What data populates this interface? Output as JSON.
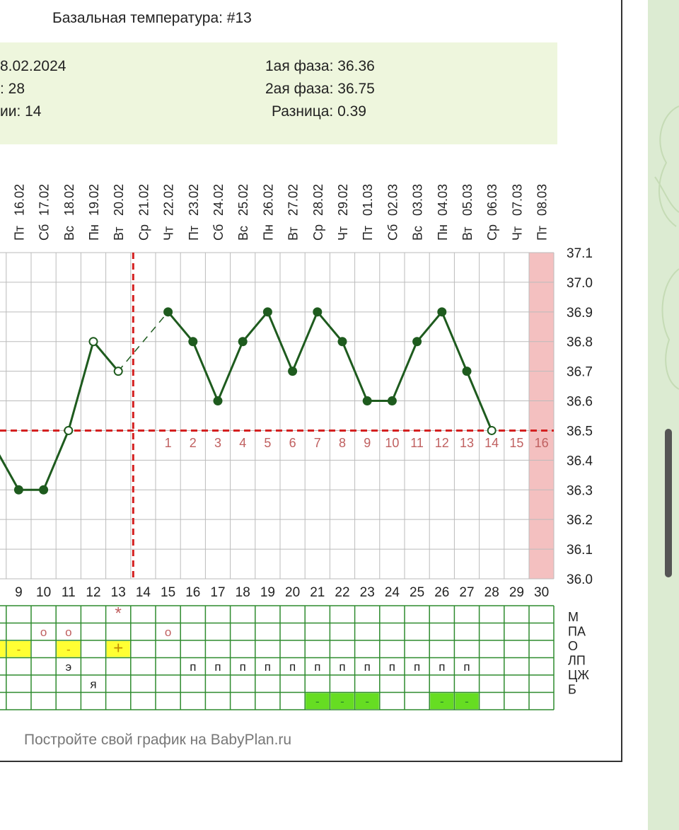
{
  "chart_title": "Базальная температура: #13",
  "summary": {
    "left": [
      "8.02.2024",
      ": 28",
      "ии: 14"
    ],
    "right": [
      "1ая фаза: 36.36",
      "2ая фаза: 36.75",
      "Разница: 0.39"
    ]
  },
  "footer": "Постройте свой график на BabyPlan.ru",
  "chart_data": {
    "type": "line",
    "title": "Базальная температура: #13",
    "days": [
      9,
      10,
      11,
      12,
      13,
      14,
      15,
      16,
      17,
      18,
      19,
      20,
      21,
      22,
      23,
      24,
      25,
      26,
      27,
      28,
      29,
      30
    ],
    "dates": [
      "16.02",
      "17.02",
      "18.02",
      "19.02",
      "20.02",
      "21.02",
      "22.02",
      "23.02",
      "24.02",
      "25.02",
      "26.02",
      "27.02",
      "28.02",
      "29.02",
      "01.03",
      "02.03",
      "03.03",
      "04.03",
      "05.03",
      "06.03",
      "07.03",
      "08.03"
    ],
    "weekdays": [
      "Пт",
      "Сб",
      "Вс",
      "Пн",
      "Вт",
      "Ср",
      "Чт",
      "Пт",
      "Сб",
      "Вс",
      "Пн",
      "Вт",
      "Ср",
      "Чт",
      "Пт",
      "Сб",
      "Вс",
      "Пн",
      "Вт",
      "Ср",
      "Чт",
      "Пт"
    ],
    "partial_first_weekday": "Пт",
    "temperatures": [
      {
        "day": 8,
        "value": 36.45
      },
      {
        "day": 9,
        "value": 36.3
      },
      {
        "day": 10,
        "value": 36.3
      },
      {
        "day": 11,
        "value": 36.5,
        "marker": "open"
      },
      {
        "day": 12,
        "value": 36.8,
        "marker": "open"
      },
      {
        "day": 13,
        "value": 36.7,
        "marker": "open"
      },
      {
        "day": 15,
        "value": 36.9
      },
      {
        "day": 16,
        "value": 36.8
      },
      {
        "day": 17,
        "value": 36.6
      },
      {
        "day": 18,
        "value": 36.8
      },
      {
        "day": 19,
        "value": 36.9
      },
      {
        "day": 20,
        "value": 36.7
      },
      {
        "day": 21,
        "value": 36.9
      },
      {
        "day": 22,
        "value": 36.8
      },
      {
        "day": 23,
        "value": 36.6
      },
      {
        "day": 24,
        "value": 36.6
      },
      {
        "day": 25,
        "value": 36.8
      },
      {
        "day": 26,
        "value": 36.9
      },
      {
        "day": 27,
        "value": 36.7
      },
      {
        "day": 28,
        "value": 36.5,
        "marker": "open"
      }
    ],
    "gap_line": [
      {
        "day": 13,
        "value": 36.7
      },
      {
        "day": 15,
        "value": 36.9
      }
    ],
    "y_ticks": [
      "37.1",
      "37.0",
      "36.9",
      "36.8",
      "36.7",
      "36.6",
      "36.5",
      "36.4",
      "36.3",
      "36.2",
      "36.1",
      "36.0"
    ],
    "ylim": [
      36.0,
      37.1
    ],
    "coverline": 36.5,
    "ovulation_day": 14,
    "luteal_numbers": [
      "1",
      "2",
      "3",
      "4",
      "5",
      "6",
      "7",
      "8",
      "9",
      "10",
      "11",
      "12",
      "13",
      "14",
      "15",
      "16"
    ],
    "expected_period_day": 30,
    "colors": {
      "line": "#1e5b1e",
      "grid": "#bbbbbb",
      "coverline": "#d42020",
      "luteal_num": "#c06060",
      "period": "#f4c0c0",
      "grid_green": "#2e8b2e",
      "yellow": "#ffff33",
      "green": "#66dd22"
    },
    "legend_rows": [
      "М",
      "ПА",
      "О",
      "ЛП",
      "ЦЖ",
      "Б"
    ],
    "marks": {
      "M": [
        {
          "day": 13,
          "text": "*"
        }
      ],
      "PA": [
        {
          "day": 10,
          "text": "o"
        },
        {
          "day": 11,
          "text": "o"
        },
        {
          "day": 15,
          "text": "o"
        }
      ],
      "O": [
        {
          "day": 8,
          "text": "",
          "fill": "yellow"
        },
        {
          "day": 9,
          "text": "-",
          "fill": "yellow"
        },
        {
          "day": 11,
          "text": "-",
          "fill": "yellow"
        },
        {
          "day": 13,
          "text": "+",
          "fill": "yellow"
        }
      ],
      "LP": [
        {
          "day": 11,
          "text": "э"
        },
        {
          "day": 16,
          "text": "п"
        },
        {
          "day": 17,
          "text": "п"
        },
        {
          "day": 18,
          "text": "п"
        },
        {
          "day": 19,
          "text": "п"
        },
        {
          "day": 20,
          "text": "п"
        },
        {
          "day": 21,
          "text": "п"
        },
        {
          "day": 22,
          "text": "п"
        },
        {
          "day": 23,
          "text": "п"
        },
        {
          "day": 24,
          "text": "п"
        },
        {
          "day": 25,
          "text": "п"
        },
        {
          "day": 26,
          "text": "п"
        },
        {
          "day": 27,
          "text": "п"
        }
      ],
      "CZH": [
        {
          "day": 12,
          "text": "я"
        }
      ],
      "B": [
        {
          "day": 21,
          "text": "-",
          "fill": "green"
        },
        {
          "day": 22,
          "text": "-",
          "fill": "green"
        },
        {
          "day": 23,
          "text": "-",
          "fill": "green"
        },
        {
          "day": 26,
          "text": "-",
          "fill": "green"
        },
        {
          "day": 27,
          "text": "-",
          "fill": "green"
        }
      ]
    }
  }
}
